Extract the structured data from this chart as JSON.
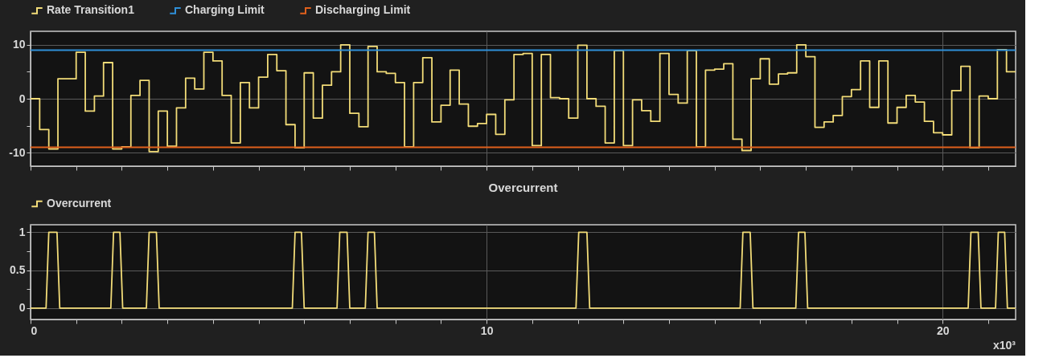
{
  "chart_data": [
    {
      "type": "step",
      "legend": "top",
      "grid": true,
      "tick_labels": "y",
      "xlim": [
        0,
        21.6
      ],
      "xticks": [
        0,
        {
          "value": 1,
          "label": null
        },
        {
          "value": 2,
          "label": null
        },
        {
          "value": 3,
          "label": null
        },
        {
          "value": 4,
          "label": null
        },
        {
          "value": 5,
          "label": null
        },
        {
          "value": 6,
          "label": null
        },
        {
          "value": 7,
          "label": null
        },
        {
          "value": 8,
          "label": null
        },
        {
          "value": 9,
          "label": null
        },
        10,
        {
          "value": 11,
          "label": null
        },
        {
          "value": 12,
          "label": null
        },
        {
          "value": 13,
          "label": null
        },
        {
          "value": 14,
          "label": null
        },
        {
          "value": 15,
          "label": null
        },
        {
          "value": 16,
          "label": null
        },
        {
          "value": 17,
          "label": null
        },
        {
          "value": 18,
          "label": null
        },
        {
          "value": 19,
          "label": null
        },
        20,
        {
          "value": 21,
          "label": null
        }
      ],
      "ylim": [
        -12.5,
        12.5
      ],
      "yticks": [
        -10,
        {
          "value": -5,
          "label": null
        },
        0,
        {
          "value": 5,
          "label": null
        },
        10
      ],
      "series": [
        {
          "name": "Rate Transition1",
          "color": "#f2dc78",
          "x": [
            0,
            0.2,
            0.4,
            0.6,
            0.8,
            1.0,
            1.2,
            1.4,
            1.6,
            1.8,
            2.0,
            2.2,
            2.4,
            2.6,
            2.8,
            3.0,
            3.2,
            3.4,
            3.6,
            3.8,
            4.0,
            4.2,
            4.4,
            4.6,
            4.8,
            5.0,
            5.2,
            5.4,
            5.6,
            5.8,
            6.0,
            6.2,
            6.4,
            6.6,
            6.8,
            7.0,
            7.2,
            7.4,
            7.6,
            7.8,
            8.0,
            8.2,
            8.4,
            8.6,
            8.8,
            9.0,
            9.2,
            9.4,
            9.6,
            9.8,
            10.0,
            10.2,
            10.4,
            10.6,
            10.8,
            11.0,
            11.2,
            11.4,
            11.6,
            11.8,
            12.0,
            12.2,
            12.4,
            12.6,
            12.8,
            13.0,
            13.2,
            13.4,
            13.6,
            13.8,
            14.0,
            14.2,
            14.4,
            14.6,
            14.8,
            15.0,
            15.2,
            15.4,
            15.6,
            15.8,
            16.0,
            16.2,
            16.4,
            16.6,
            16.8,
            17.0,
            17.2,
            17.4,
            17.6,
            17.8,
            18.0,
            18.2,
            18.4,
            18.6,
            18.8,
            19.0,
            19.2,
            19.4,
            19.6,
            19.8,
            20.0,
            20.2,
            20.4,
            20.6,
            20.8,
            21.0,
            21.2,
            21.4,
            21.6
          ],
          "values": [
            0,
            -5.7,
            -9.3,
            3.7,
            3.7,
            8.6,
            -2.3,
            0.5,
            6.7,
            -9.3,
            -8.9,
            0.6,
            3.4,
            -9.8,
            -2.3,
            -8.8,
            -1.7,
            3.8,
            1.8,
            8.6,
            7,
            0.6,
            -8.2,
            3,
            -1.7,
            4,
            8.2,
            5.2,
            -4.8,
            -9.1,
            4.8,
            -3.6,
            2.5,
            5,
            10,
            -2.7,
            -5.2,
            9.7,
            5,
            4.7,
            3,
            -8.9,
            3,
            7.6,
            -4.3,
            -1.2,
            5.3,
            -1,
            -5.1,
            -4.6,
            -2.9,
            -6.6,
            -0.2,
            8.2,
            8.4,
            -8.7,
            8.2,
            0.2,
            0,
            -3.6,
            9.9,
            0,
            -1.4,
            -8.2,
            8.9,
            -8.7,
            -0.2,
            -2.2,
            -4.2,
            8.4,
            0.8,
            -0.8,
            8.9,
            -8.9,
            5.3,
            5.5,
            6.5,
            -7.5,
            -9.6,
            3.7,
            7.4,
            2.7,
            4.6,
            4.8,
            10,
            7.8,
            -5.3,
            -4.3,
            -3.1,
            0.4,
            1.7,
            7,
            -1.6,
            7,
            -4.5,
            -1.6,
            0.6,
            -0.6,
            -4.2,
            -6.3,
            -6.7,
            1.5,
            6,
            -9.1,
            0.5,
            0,
            9.1,
            5,
            5
          ]
        },
        {
          "name": "Charging Limit",
          "color": "#2f8fd8",
          "x": [
            0,
            21.6
          ],
          "values": [
            9,
            9
          ]
        },
        {
          "name": "Discharging Limit",
          "color": "#e0601c",
          "x": [
            0,
            21.6
          ],
          "values": [
            -9,
            -9
          ]
        }
      ]
    },
    {
      "type": "line",
      "title": "Overcurrent",
      "legend": "top",
      "grid": true,
      "annotations": [
        "x10³"
      ],
      "xlim": [
        0,
        21.6
      ],
      "xticks": [
        0,
        {
          "value": 1,
          "label": null
        },
        {
          "value": 2,
          "label": null
        },
        {
          "value": 3,
          "label": null
        },
        {
          "value": 4,
          "label": null
        },
        {
          "value": 5,
          "label": null
        },
        {
          "value": 6,
          "label": null
        },
        {
          "value": 7,
          "label": null
        },
        {
          "value": 8,
          "label": null
        },
        {
          "value": 9,
          "label": null
        },
        10,
        {
          "value": 11,
          "label": null
        },
        {
          "value": 12,
          "label": null
        },
        {
          "value": 13,
          "label": null
        },
        {
          "value": 14,
          "label": null
        },
        {
          "value": 15,
          "label": null
        },
        {
          "value": 16,
          "label": null
        },
        {
          "value": 17,
          "label": null
        },
        {
          "value": 18,
          "label": null
        },
        {
          "value": 19,
          "label": null
        },
        20,
        {
          "value": 21,
          "label": null
        }
      ],
      "ylim": [
        -0.15,
        1.1
      ],
      "yticks": [
        0,
        {
          "value": 0.25,
          "label": null
        },
        0.5,
        {
          "value": 0.75,
          "label": null
        },
        1
      ],
      "series": [
        {
          "name": "Overcurrent",
          "color": "#f2dc78",
          "x": [
            0,
            0.34,
            0.4,
            0.58,
            0.64,
            1.76,
            1.82,
            1.96,
            2.02,
            2.54,
            2.6,
            2.76,
            2.82,
            5.74,
            5.8,
            5.94,
            6.0,
            6.72,
            6.78,
            6.94,
            7.0,
            7.34,
            7.4,
            7.54,
            7.6,
            11.96,
            12.02,
            12.2,
            12.26,
            15.56,
            15.62,
            15.78,
            15.84,
            16.78,
            16.84,
            16.98,
            17.04,
            20.56,
            20.62,
            20.78,
            20.84,
            21.16,
            21.22,
            21.36,
            21.42,
            21.6
          ],
          "values": [
            0,
            0,
            1,
            1,
            0,
            0,
            1,
            1,
            0,
            0,
            1,
            1,
            0,
            0,
            1,
            1,
            0,
            0,
            1,
            1,
            0,
            0,
            1,
            1,
            0,
            0,
            1,
            1,
            0,
            0,
            1,
            1,
            0,
            0,
            1,
            1,
            0,
            0,
            1,
            1,
            0,
            0,
            1,
            1,
            0,
            0
          ]
        }
      ]
    }
  ]
}
